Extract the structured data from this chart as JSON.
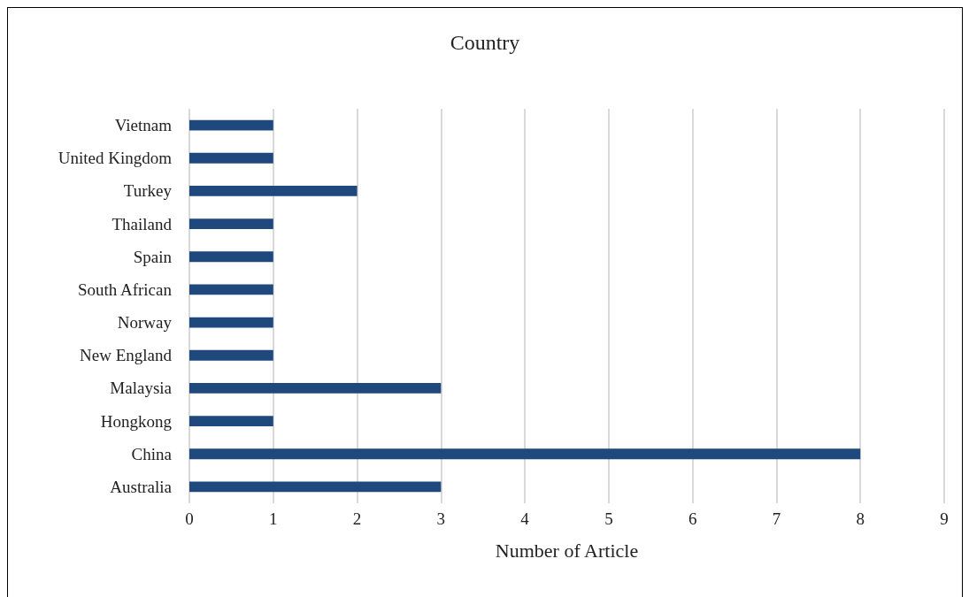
{
  "chart_data": {
    "type": "bar",
    "orientation": "horizontal",
    "title": "Country",
    "xlabel": "Number of Article",
    "categories": [
      "Vietnam",
      "United Kingdom",
      "Turkey",
      "Thailand",
      "Spain",
      "South African",
      "Norway",
      "New England",
      "Malaysia",
      "Hongkong",
      "China",
      "Australia"
    ],
    "values": [
      1,
      1,
      2,
      1,
      1,
      1,
      1,
      1,
      3,
      1,
      8,
      3
    ],
    "color": "#1f497d",
    "xlim": [
      0,
      9
    ],
    "xticks": [
      0,
      1,
      2,
      3,
      4,
      5,
      6,
      7,
      8,
      9
    ],
    "grid": "x"
  }
}
